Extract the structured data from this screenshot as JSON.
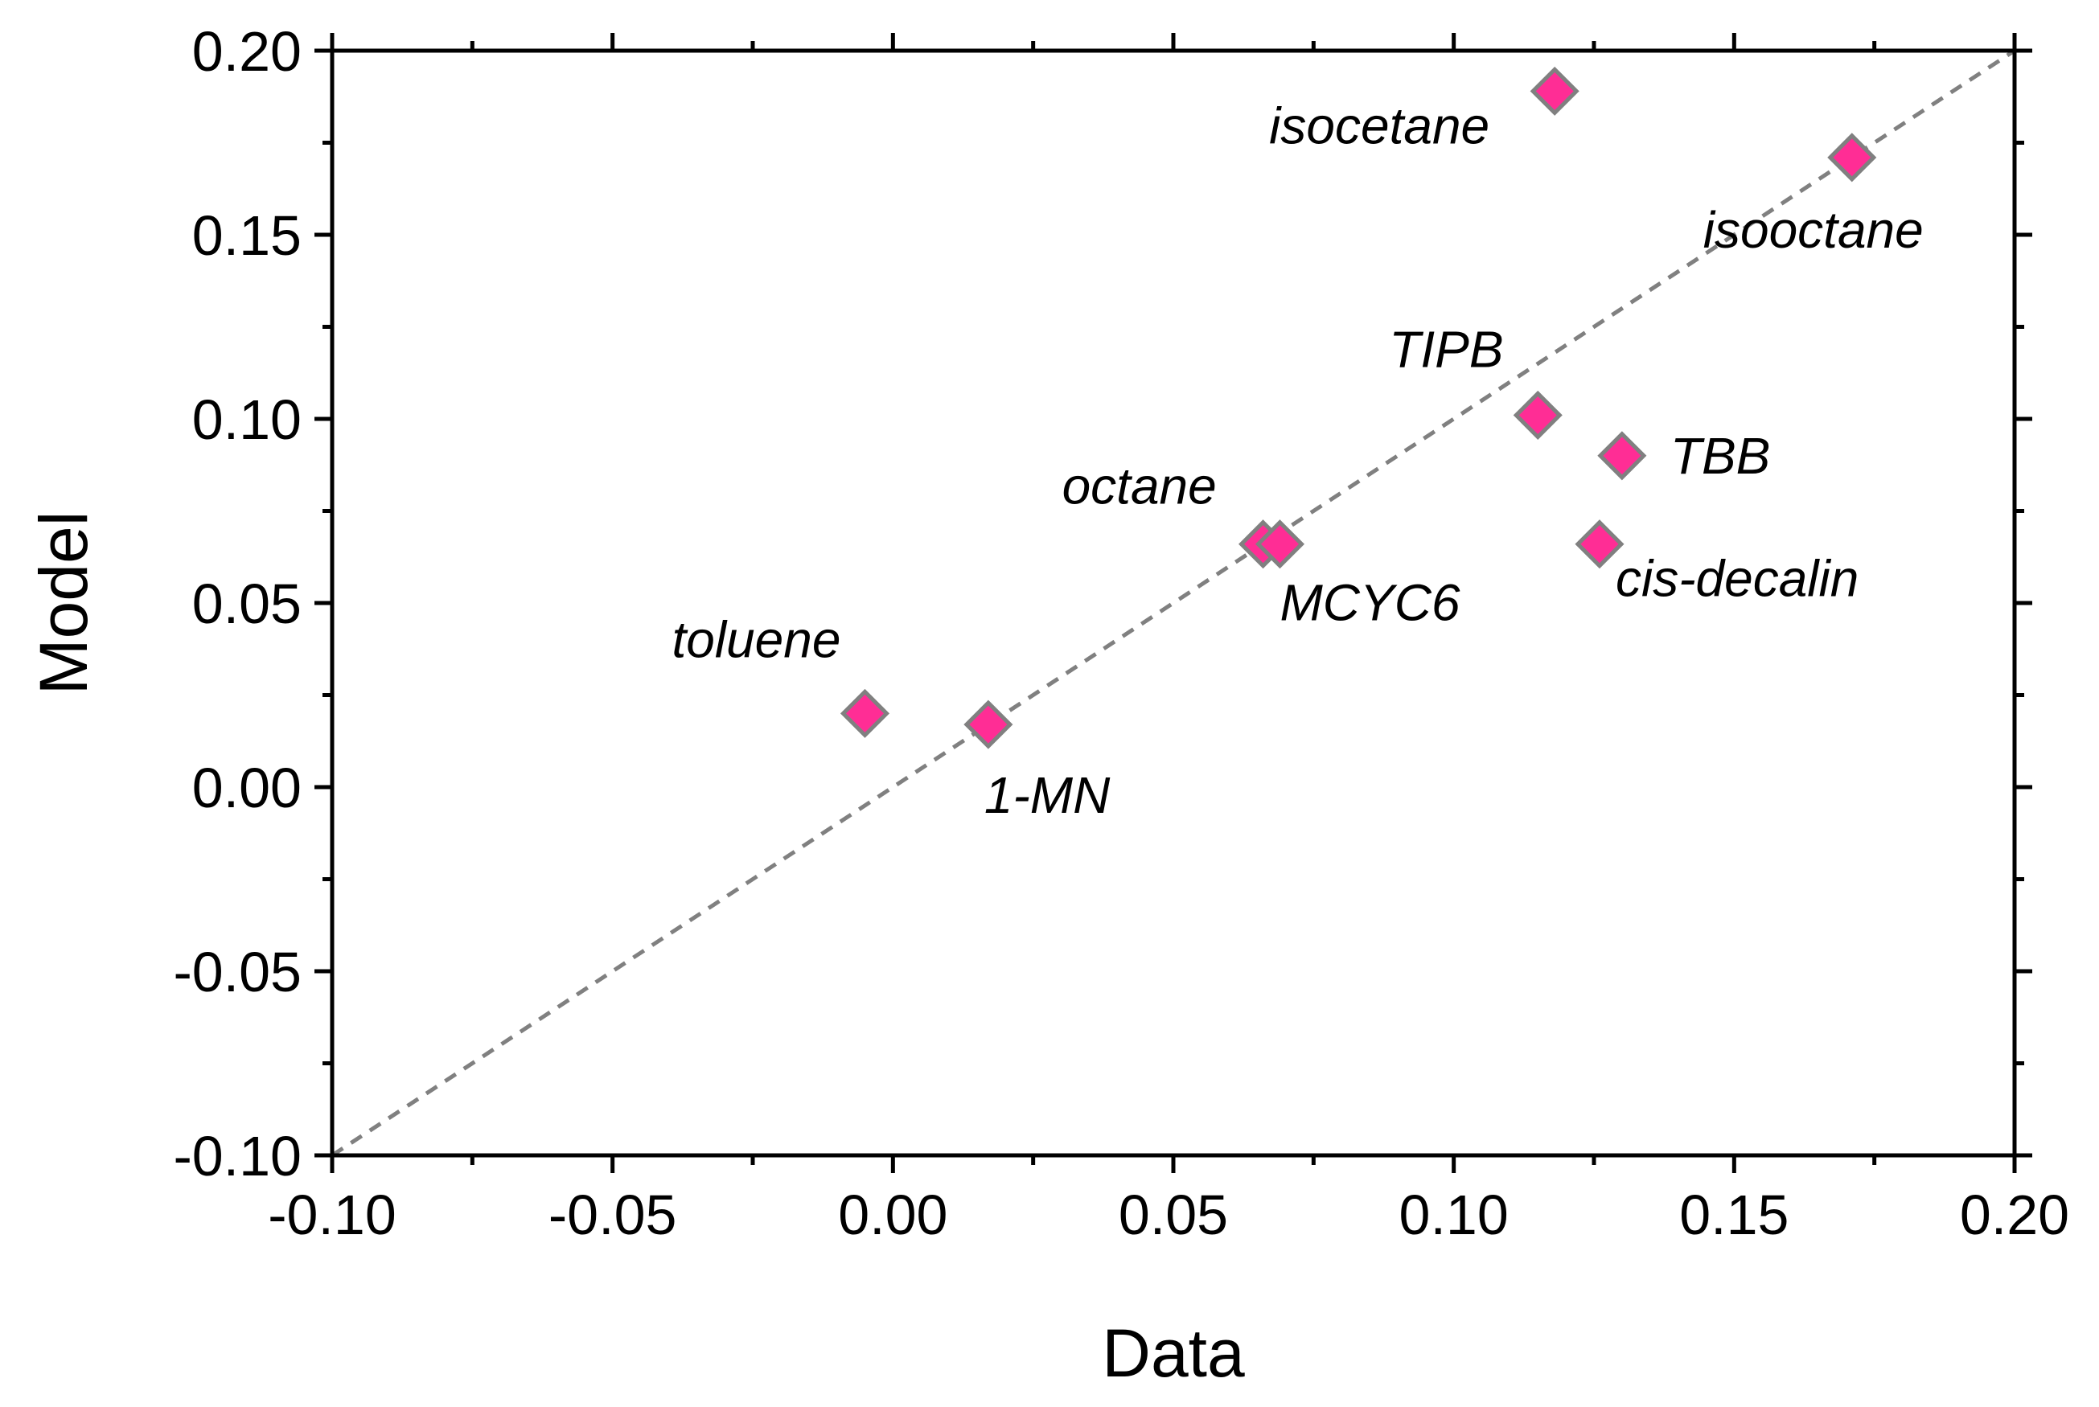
{
  "chart_data": {
    "type": "scatter",
    "title": "",
    "xlabel": "Data",
    "ylabel": "Model",
    "xlim": [
      -0.1,
      0.2
    ],
    "ylim": [
      -0.1,
      0.2
    ],
    "xticks": [
      "-0.10",
      "-0.05",
      "0.00",
      "0.05",
      "0.10",
      "0.15",
      "0.20"
    ],
    "yticks": [
      "-0.10",
      "-0.05",
      "0.00",
      "0.05",
      "0.10",
      "0.15",
      "0.20"
    ],
    "reference_line": {
      "type": "y=x",
      "style": "dashed",
      "color": "#808080"
    },
    "marker": {
      "shape": "diamond",
      "fill": "#ff2d95",
      "edge": "#808080"
    },
    "points": [
      {
        "label": "toluene",
        "x": -0.005,
        "y": 0.02
      },
      {
        "label": "1-MN",
        "x": 0.017,
        "y": 0.017
      },
      {
        "label": "octane",
        "x": 0.066,
        "y": 0.066
      },
      {
        "label": "MCYC6",
        "x": 0.069,
        "y": 0.066
      },
      {
        "label": "TIPB",
        "x": 0.115,
        "y": 0.101
      },
      {
        "label": "TBB",
        "x": 0.13,
        "y": 0.09
      },
      {
        "label": "cis-decalin",
        "x": 0.126,
        "y": 0.066
      },
      {
        "label": "isocetane",
        "x": 0.118,
        "y": 0.189
      },
      {
        "label": "isooctane",
        "x": 0.171,
        "y": 0.171
      }
    ]
  }
}
